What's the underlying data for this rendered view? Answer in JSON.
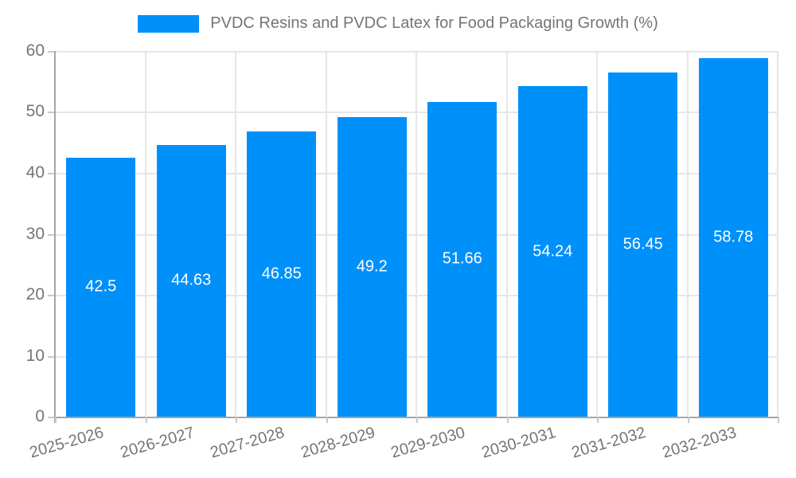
{
  "legend": {
    "title": "PVDC Resins and PVDC Latex for Food Packaging Growth (%)"
  },
  "colors": {
    "bar": "#0090FA",
    "axis": "#A6A6A6",
    "grid": "#E6E6E6",
    "tick": "#C9C9C9",
    "tick_label": "#757575",
    "value_label": "#FFFFFF",
    "background": "#FFFFFF"
  },
  "chart_data": {
    "type": "bar",
    "title": "PVDC Resins and PVDC Latex for Food Packaging Growth (%)",
    "categories": [
      "2025-2026",
      "2026-2027",
      "2027-2028",
      "2028-2029",
      "2029-2030",
      "2030-2031",
      "2031-2032",
      "2032-2033"
    ],
    "values": [
      42.5,
      44.63,
      46.85,
      49.2,
      51.66,
      54.24,
      56.45,
      58.78
    ],
    "value_labels": [
      "42.5",
      "44.63",
      "46.85",
      "49.2",
      "51.66",
      "54.24",
      "56.45",
      "58.78"
    ],
    "xlabel": "",
    "ylabel": "",
    "ylim": [
      0,
      60
    ],
    "yticks": [
      0,
      10,
      20,
      30,
      40,
      50,
      60
    ],
    "ytick_labels": [
      "0",
      "10",
      "20",
      "30",
      "40",
      "50",
      "60"
    ],
    "grid": true,
    "legend_position": "top-center",
    "value_label_position": "inside-center",
    "x_label_rotation_deg": -16
  }
}
